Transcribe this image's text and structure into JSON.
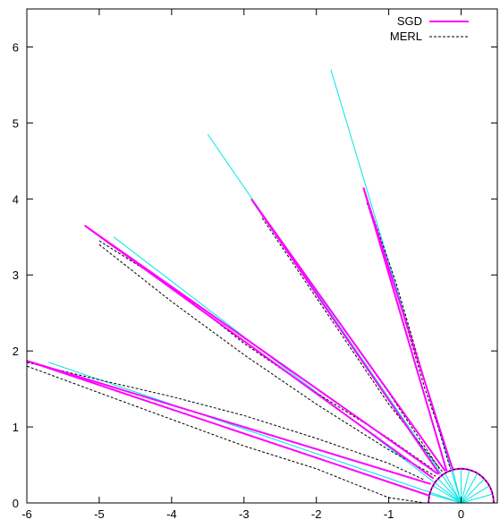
{
  "chart_data": {
    "type": "line",
    "title": "",
    "xlabel": "",
    "ylabel": "",
    "xlim": [
      -6,
      0.5
    ],
    "ylim": [
      0,
      6.5
    ],
    "xticks": [
      "-6",
      "-5",
      "-4",
      "-3",
      "-2",
      "-1",
      "0"
    ],
    "yticks": [
      "0",
      "1",
      "2",
      "3",
      "4",
      "5",
      "6"
    ],
    "grid": false,
    "legend_position": "top-right",
    "colors": {
      "sgd": "#ff00ff",
      "merl": "#000000",
      "reference": "#00e5e5"
    },
    "legend": [
      {
        "name": "SGD",
        "style": "solid",
        "color": "#ff00ff"
      },
      {
        "name": "MERL",
        "style": "dashed",
        "color": "#000000"
      }
    ],
    "reference_lobes": [
      {
        "tip": [
          -5.7,
          1.85
        ]
      },
      {
        "tip": [
          -4.8,
          3.5
        ]
      },
      {
        "tip": [
          -3.5,
          4.85
        ]
      },
      {
        "tip": [
          -1.8,
          5.7
        ]
      }
    ],
    "sgd_lobes": [
      {
        "tip": [
          -6.0,
          1.87
        ],
        "base_left": [
          -0.45,
          0.1
        ],
        "base_right": [
          -0.42,
          0.25
        ]
      },
      {
        "tip": [
          -5.2,
          3.65
        ],
        "base_left": [
          -0.38,
          0.32
        ],
        "base_right": [
          -0.32,
          0.38
        ]
      },
      {
        "tip": [
          -2.9,
          4.0
        ],
        "base_left": [
          -0.3,
          0.38
        ],
        "base_right": [
          -0.22,
          0.42
        ]
      },
      {
        "tip": [
          -1.35,
          4.15
        ],
        "base_left": [
          -0.2,
          0.42
        ],
        "base_right": [
          -0.12,
          0.45
        ]
      }
    ],
    "merl_lobes": [
      {
        "upper": [
          [
            -6.0,
            1.85
          ],
          [
            -5.0,
            1.62
          ],
          [
            -4.0,
            1.4
          ],
          [
            -3.0,
            1.15
          ],
          [
            -2.0,
            0.85
          ],
          [
            -1.0,
            0.52
          ],
          [
            -0.5,
            0.3
          ]
        ],
        "lower": [
          [
            -6.0,
            1.8
          ],
          [
            -5.0,
            1.45
          ],
          [
            -4.0,
            1.1
          ],
          [
            -3.0,
            0.75
          ],
          [
            -2.0,
            0.45
          ],
          [
            -1.0,
            0.07
          ],
          [
            -0.5,
            0.0
          ]
        ]
      },
      {
        "upper": [
          [
            -5.0,
            3.45
          ],
          [
            -4.0,
            2.85
          ],
          [
            -3.0,
            2.1
          ],
          [
            -2.0,
            1.45
          ],
          [
            -1.0,
            0.85
          ],
          [
            -0.4,
            0.45
          ]
        ],
        "lower": [
          [
            -5.0,
            3.4
          ],
          [
            -4.0,
            2.65
          ],
          [
            -3.0,
            1.95
          ],
          [
            -2.0,
            1.3
          ],
          [
            -1.0,
            0.7
          ],
          [
            -0.35,
            0.35
          ]
        ]
      },
      {
        "upper": [
          [
            -2.75,
            3.8
          ],
          [
            -2.0,
            2.8
          ],
          [
            -1.0,
            1.45
          ],
          [
            -0.3,
            0.45
          ]
        ],
        "lower": [
          [
            -2.75,
            3.75
          ],
          [
            -2.0,
            2.7
          ],
          [
            -1.0,
            1.3
          ],
          [
            -0.25,
            0.4
          ]
        ]
      },
      {
        "upper": [
          [
            -1.3,
            4.0
          ],
          [
            -0.9,
            2.9
          ],
          [
            -0.5,
            1.6
          ],
          [
            -0.15,
            0.45
          ]
        ],
        "lower": [
          [
            -1.3,
            3.95
          ],
          [
            -0.9,
            2.8
          ],
          [
            -0.5,
            1.5
          ],
          [
            -0.1,
            0.42
          ]
        ]
      }
    ],
    "small_lobe_radius": 0.45,
    "lobe_spokes": 13
  }
}
